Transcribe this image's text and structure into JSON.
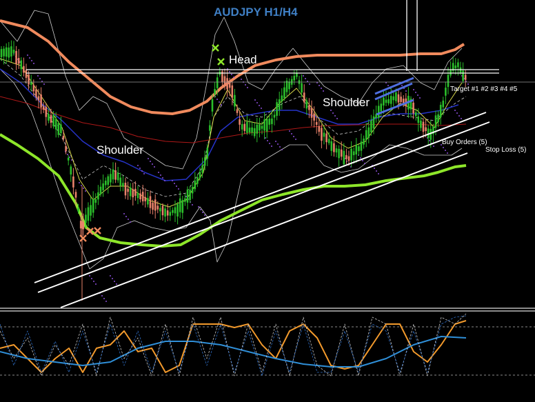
{
  "chart_data": [
    {
      "type": "candlestick",
      "title": "AUDJPY H1/H4",
      "annotations": {
        "left_shoulder": "Shoulder",
        "head": "Head",
        "right_shoulder": "Shoulder",
        "targets": "Target #1 #2 #3 #4 #5",
        "buy_orders": "Buy Orders (5)",
        "stop_loss": "Stop Loss (5)"
      },
      "markers": {
        "head_marker": "x",
        "shoulder_marker": "x"
      },
      "colors": {
        "background": "#000000",
        "bull_candle": "#2bbf2b",
        "bear_candle": "#e8826a",
        "slow_ma": "#f08a5d",
        "trend_ma": "#8ee62a",
        "fast_ma_blue": "#2633c8",
        "ma_yellow": "#d8d84a",
        "ma_red": "#b01818",
        "bollinger": "#cfcfcf",
        "trendlines": "#ffffff",
        "flag": "#4f6fe0",
        "title": "#3f7fc4"
      }
    },
    {
      "type": "line",
      "panel": "oscillator",
      "colors": {
        "orange": "#f39a2c",
        "blue": "#2f8fd8",
        "dashed": "#c8c8c8"
      }
    }
  ]
}
